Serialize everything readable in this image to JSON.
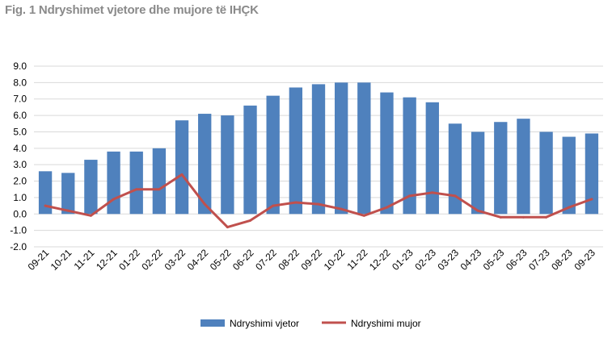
{
  "figure": {
    "title": "Fig. 1 Ndryshimet vjetore dhe mujore të IHÇK"
  },
  "chart_data": {
    "type": "bar",
    "title": "Fig. 1 Ndryshimet vjetore dhe mujore të IHÇK",
    "categories": [
      "09-21",
      "10-21",
      "11-21",
      "12-21",
      "01-22",
      "02-22",
      "03-22",
      "04-22",
      "05-22",
      "06-22",
      "07-22",
      "08-22",
      "09-22",
      "10-22",
      "11-22",
      "12-22",
      "01-23",
      "02-23",
      "03-23",
      "04-23",
      "05-23",
      "06-23",
      "07-23",
      "08-23",
      "09-23"
    ],
    "series": [
      {
        "name": "Ndryshimi vjetor",
        "type": "bar",
        "color": "#4f81bd",
        "values": [
          2.6,
          2.5,
          3.3,
          3.8,
          3.8,
          4.0,
          5.7,
          6.1,
          6.0,
          6.6,
          7.2,
          7.7,
          7.9,
          8.0,
          8.0,
          7.4,
          7.1,
          6.8,
          5.5,
          5.0,
          5.6,
          5.8,
          5.0,
          4.7,
          4.9
        ]
      },
      {
        "name": "Ndryshimi mujor",
        "type": "line",
        "color": "#c0504d",
        "values": [
          0.5,
          0.2,
          -0.1,
          0.9,
          1.5,
          1.5,
          2.4,
          0.6,
          -0.8,
          -0.4,
          0.5,
          0.7,
          0.6,
          0.3,
          -0.1,
          0.4,
          1.1,
          1.3,
          1.1,
          0.2,
          -0.2,
          -0.2,
          -0.2,
          0.4,
          0.9
        ]
      }
    ],
    "yticks": [
      "9.0",
      "8.0",
      "7.0",
      "6.0",
      "5.0",
      "4.0",
      "3.0",
      "2.0",
      "1.0",
      "0.0",
      "-1.0",
      "-2.0"
    ],
    "ylim": [
      -2,
      9
    ],
    "grid": true,
    "legend_position": "bottom-center"
  }
}
